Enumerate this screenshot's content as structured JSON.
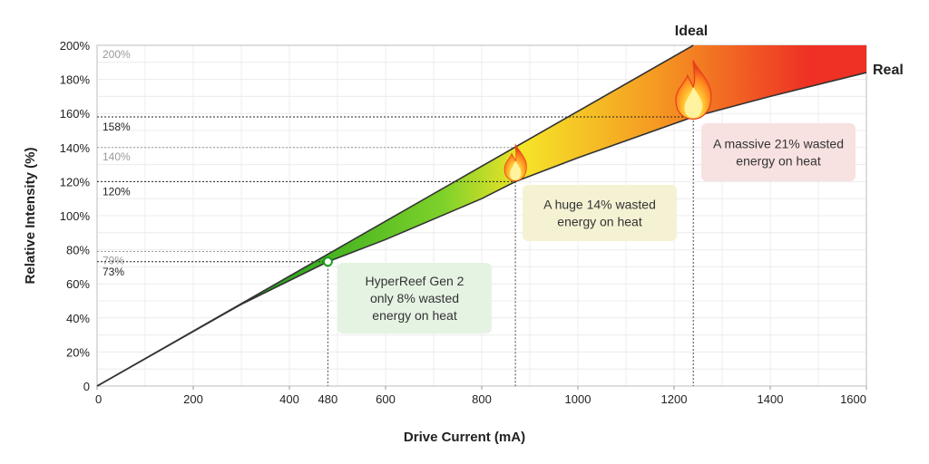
{
  "chart_data": {
    "type": "area",
    "title": "",
    "xlabel": "Drive Current (mA)",
    "ylabel": "Relative Intensity (%)",
    "xlim": [
      0,
      1600
    ],
    "ylim": [
      0,
      200
    ],
    "x_ticks": [
      0,
      200,
      400,
      600,
      800,
      1000,
      1200,
      1400,
      1600
    ],
    "y_ticks": [
      "0",
      "20%",
      "40%",
      "60%",
      "80%",
      "100%",
      "120%",
      "140%",
      "160%",
      "180%",
      "200%"
    ],
    "highlight_tick": {
      "label": "480",
      "x": 480,
      "color": "#1a9fd8"
    },
    "series": [
      {
        "name": "Ideal",
        "x": [
          0,
          1240
        ],
        "y": [
          0,
          200
        ]
      },
      {
        "name": "Real",
        "x": [
          0,
          300,
          480,
          600,
          800,
          870,
          1000,
          1240,
          1400,
          1600
        ],
        "y": [
          0,
          48,
          73,
          86,
          110,
          120,
          134,
          158,
          170,
          184
        ]
      }
    ],
    "reference_lines": [
      {
        "label": "200%",
        "y": 200,
        "tone": "light"
      },
      {
        "label": "158%",
        "y": 158,
        "tone": "dark"
      },
      {
        "label": "140%",
        "y": 140,
        "tone": "light"
      },
      {
        "label": "120%",
        "y": 120,
        "tone": "dark"
      },
      {
        "label": "79%",
        "y": 79,
        "tone": "light"
      },
      {
        "label": "73%",
        "y": 73,
        "tone": "dark"
      }
    ],
    "markers": [
      {
        "x": 480,
        "y": 73,
        "type": "circle"
      },
      {
        "x": 870,
        "y": 130,
        "type": "flame",
        "size": "small"
      },
      {
        "x": 1240,
        "y": 172,
        "type": "flame",
        "size": "large"
      }
    ],
    "vertical_markers": [
      480,
      870,
      1240
    ],
    "annotations": [
      {
        "id": "gen2",
        "lines": [
          {
            "text": "HyperReef Gen 2",
            "color": "#1a9fd8"
          },
          {
            "text": "only 8% wasted"
          },
          {
            "text": "energy on heat"
          }
        ],
        "bg": "#e5f3e3"
      },
      {
        "id": "huge",
        "lines": [
          {
            "text": "A huge 14% wasted"
          },
          {
            "text": "energy on heat"
          }
        ],
        "bg": "#f5f2d3"
      },
      {
        "id": "massive",
        "lines": [
          {
            "text": "A massive 21% wasted"
          },
          {
            "text": "energy on heat"
          }
        ],
        "bg": "#f7e1e1"
      }
    ],
    "gradient_colors": [
      "#1a9e1a",
      "#7fd12a",
      "#f5e428",
      "#f59a22",
      "#ee3124"
    ],
    "grid": true,
    "legend": "none"
  }
}
